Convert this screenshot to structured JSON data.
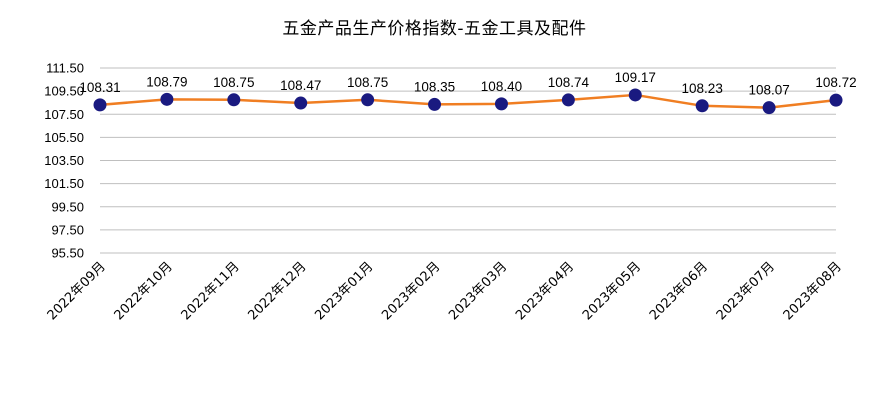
{
  "chart_data": {
    "type": "line",
    "title": "五金产品生产价格指数-五金工具及配件",
    "categories": [
      "2022年09月",
      "2022年10月",
      "2022年11月",
      "2022年12月",
      "2023年01月",
      "2023年02月",
      "2023年03月",
      "2023年04月",
      "2023年05月",
      "2023年06月",
      "2023年07月",
      "2023年08月"
    ],
    "series": [
      {
        "values": [
          108.31,
          108.79,
          108.75,
          108.47,
          108.75,
          108.35,
          108.4,
          108.74,
          109.17,
          108.23,
          108.07,
          108.72
        ]
      }
    ],
    "data_labels": [
      "108.31",
      "108.79",
      "108.75",
      "108.47",
      "108.75",
      "108.35",
      "108.40",
      "108.74",
      "109.17",
      "108.23",
      "108.07",
      "108.72"
    ],
    "ylim": [
      95.5,
      111.5
    ],
    "yticks": [
      "111.50",
      "109.50",
      "107.50",
      "105.50",
      "103.50",
      "101.50",
      "99.50",
      "97.50",
      "95.50"
    ],
    "grid": true,
    "legend": "none",
    "colors": {
      "line": "#F07E22",
      "marker": "#1A1A80",
      "grid": "#BFBFBF"
    }
  }
}
